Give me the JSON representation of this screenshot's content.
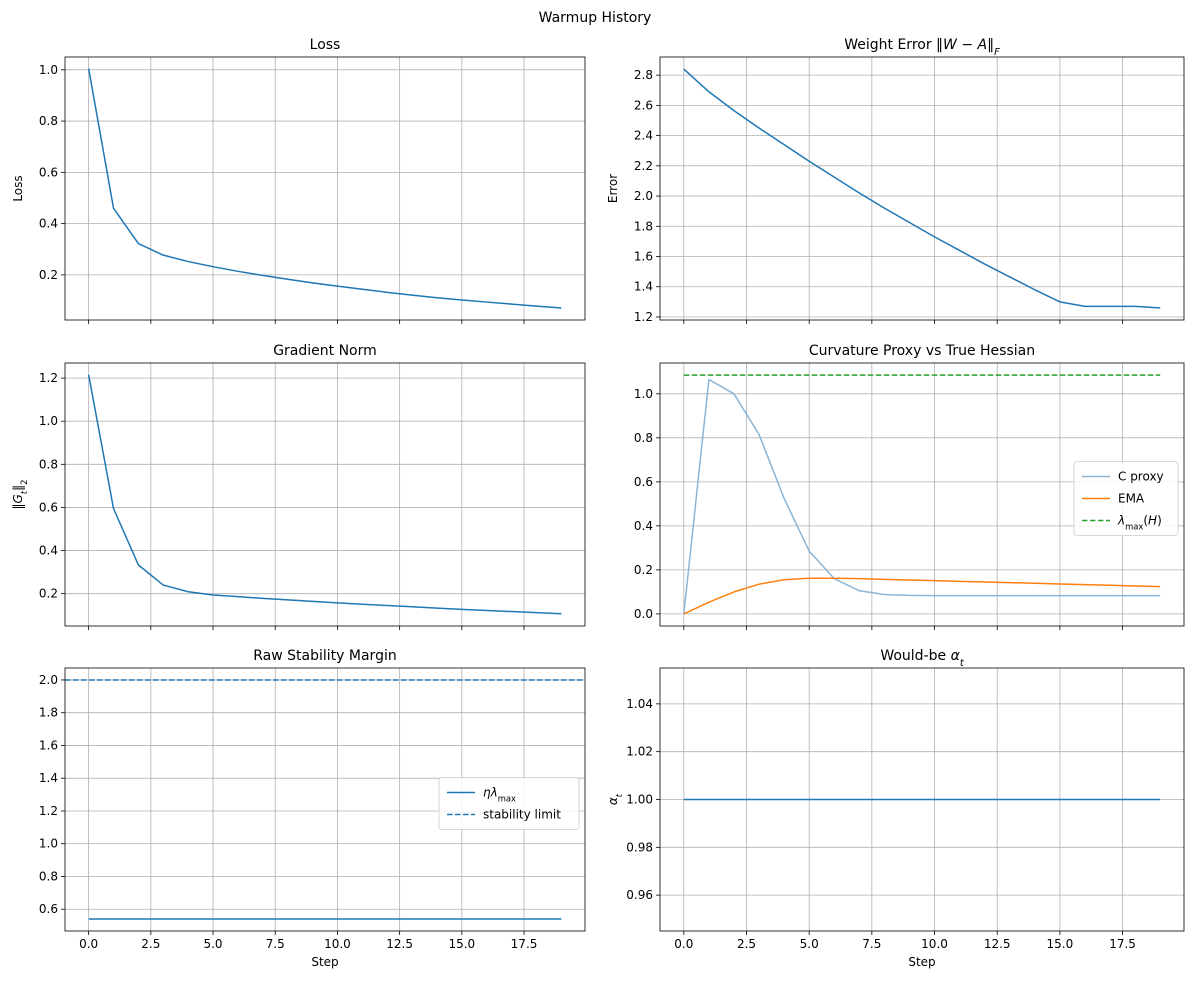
{
  "figure": {
    "suptitle": "Warmup History"
  },
  "chart_data": [
    {
      "id": "loss",
      "type": "line",
      "title": "Loss",
      "xlabel": "",
      "ylabel": "Loss",
      "xlim": [
        -0.95,
        19.95
      ],
      "ylim": [
        0.024,
        1.05
      ],
      "xticks": [
        0,
        2.5,
        5,
        7.5,
        10,
        12.5,
        15,
        17.5
      ],
      "xtick_labels": [
        "",
        "",
        "",
        "",
        "",
        "",
        "",
        ""
      ],
      "yticks": [
        0.2,
        0.4,
        0.6,
        0.8,
        1.0
      ],
      "ytick_labels": [
        "0.2",
        "0.4",
        "0.6",
        "0.8",
        "1.0"
      ],
      "grid": true,
      "legend": null,
      "series": [
        {
          "name": "",
          "color": "#1f77b4",
          "dash": "solid",
          "x": [
            0,
            1,
            2,
            3,
            4,
            5,
            6,
            7,
            8,
            9,
            10,
            11,
            12,
            13,
            14,
            15,
            16,
            17,
            18,
            19
          ],
          "y": [
            1.005,
            0.46,
            0.322,
            0.277,
            0.252,
            0.232,
            0.214,
            0.198,
            0.183,
            0.169,
            0.156,
            0.144,
            0.132,
            0.121,
            0.111,
            0.102,
            0.094,
            0.086,
            0.078,
            0.071
          ]
        }
      ]
    },
    {
      "id": "weight-error",
      "type": "line",
      "title": "Weight Error ‖W − A‖F",
      "xlabel": "",
      "ylabel": "Error",
      "xlim": [
        -0.95,
        19.95
      ],
      "ylim": [
        1.18,
        2.92
      ],
      "xticks": [
        0,
        2.5,
        5,
        7.5,
        10,
        12.5,
        15,
        17.5
      ],
      "xtick_labels": [
        "",
        "",
        "",
        "",
        "",
        "",
        "",
        ""
      ],
      "yticks": [
        1.2,
        1.4,
        1.6,
        1.8,
        2.0,
        2.2,
        2.4,
        2.6,
        2.8
      ],
      "ytick_labels": [
        "1.2",
        "1.4",
        "1.6",
        "1.8",
        "2.0",
        "2.2",
        "2.4",
        "2.6",
        "2.8"
      ],
      "grid": true,
      "legend": null,
      "series": [
        {
          "name": "",
          "color": "#1f77b4",
          "dash": "solid",
          "x": [
            0,
            1,
            2,
            3,
            4,
            5,
            6,
            7,
            8,
            9,
            10,
            11,
            12,
            13,
            14,
            15,
            16,
            17,
            18,
            19
          ],
          "y": [
            2.84,
            2.69,
            2.565,
            2.45,
            2.34,
            2.23,
            2.125,
            2.02,
            1.92,
            1.825,
            1.73,
            1.64,
            1.55,
            1.465,
            1.38,
            1.3,
            1.27,
            1.27,
            1.27,
            1.26
          ]
        }
      ]
    },
    {
      "id": "gradient-norm",
      "type": "line",
      "title": "Gradient Norm",
      "xlabel": "",
      "ylabel": "‖Gt‖2",
      "xlim": [
        -0.95,
        19.95
      ],
      "ylim": [
        0.05,
        1.27
      ],
      "xticks": [
        0,
        2.5,
        5,
        7.5,
        10,
        12.5,
        15,
        17.5
      ],
      "xtick_labels": [
        "",
        "",
        "",
        "",
        "",
        "",
        "",
        ""
      ],
      "yticks": [
        0.2,
        0.4,
        0.6,
        0.8,
        1.0,
        1.2
      ],
      "ytick_labels": [
        "0.2",
        "0.4",
        "0.6",
        "0.8",
        "1.0",
        "1.2"
      ],
      "grid": true,
      "legend": null,
      "series": [
        {
          "name": "",
          "color": "#1f77b4",
          "dash": "solid",
          "x": [
            0,
            1,
            2,
            3,
            4,
            5,
            6,
            7,
            8,
            9,
            10,
            11,
            12,
            13,
            14,
            15,
            16,
            17,
            18,
            19
          ],
          "y": [
            1.215,
            0.595,
            0.333,
            0.24,
            0.209,
            0.194,
            0.186,
            0.178,
            0.171,
            0.164,
            0.157,
            0.151,
            0.145,
            0.139,
            0.133,
            0.127,
            0.122,
            0.117,
            0.112,
            0.107
          ]
        }
      ]
    },
    {
      "id": "curvature-proxy",
      "type": "line",
      "title": "Curvature Proxy vs True Hessian",
      "xlabel": "",
      "ylabel": "",
      "xlim": [
        -0.95,
        19.95
      ],
      "ylim": [
        -0.055,
        1.14
      ],
      "xticks": [
        0,
        2.5,
        5,
        7.5,
        10,
        12.5,
        15,
        17.5
      ],
      "xtick_labels": [
        "",
        "",
        "",
        "",
        "",
        "",
        "",
        ""
      ],
      "yticks": [
        0.0,
        0.2,
        0.4,
        0.6,
        0.8,
        1.0
      ],
      "ytick_labels": [
        "0.0",
        "0.2",
        "0.4",
        "0.6",
        "0.8",
        "1.0"
      ],
      "grid": true,
      "legend": "center-right",
      "series": [
        {
          "name": "C proxy",
          "color": "#8ab5d6",
          "dash": "solid",
          "x": [
            0,
            1,
            2,
            3,
            4,
            5,
            6,
            7,
            8,
            9,
            10,
            11,
            12,
            13,
            14,
            15,
            16,
            17,
            18,
            19
          ],
          "y": [
            0.0,
            1.065,
            1.0,
            0.815,
            0.525,
            0.285,
            0.16,
            0.105,
            0.088,
            0.084,
            0.083,
            0.083,
            0.083,
            0.083,
            0.083,
            0.083,
            0.083,
            0.083,
            0.083,
            0.083
          ]
        },
        {
          "name": "EMA",
          "color": "#ff7f0e",
          "dash": "solid",
          "x": [
            0,
            1,
            2,
            3,
            4,
            5,
            6,
            7,
            8,
            9,
            10,
            11,
            12,
            13,
            14,
            15,
            16,
            17,
            18,
            19
          ],
          "y": [
            0.0,
            0.053,
            0.1,
            0.135,
            0.155,
            0.162,
            0.162,
            0.16,
            0.157,
            0.154,
            0.151,
            0.148,
            0.145,
            0.142,
            0.139,
            0.136,
            0.133,
            0.13,
            0.127,
            0.124
          ]
        },
        {
          "name": "λmax(H)",
          "color": "#2ca02c",
          "dash": "dashed",
          "x": [
            0,
            19
          ],
          "y": [
            1.085,
            1.085
          ]
        }
      ]
    },
    {
      "id": "stability-margin",
      "type": "line",
      "title": "Raw Stability Margin",
      "xlabel": "Step",
      "ylabel": "",
      "xlim": [
        -0.95,
        19.95
      ],
      "ylim": [
        0.467,
        2.073
      ],
      "xticks": [
        0,
        2.5,
        5,
        7.5,
        10,
        12.5,
        15,
        17.5
      ],
      "xtick_labels": [
        "0.0",
        "2.5",
        "5.0",
        "7.5",
        "10.0",
        "12.5",
        "15.0",
        "17.5"
      ],
      "yticks": [
        0.6,
        0.8,
        1.0,
        1.2,
        1.4,
        1.6,
        1.8,
        2.0
      ],
      "ytick_labels": [
        "0.6",
        "0.8",
        "1.0",
        "1.2",
        "1.4",
        "1.6",
        "1.8",
        "2.0"
      ],
      "grid": true,
      "legend": "center-right",
      "series": [
        {
          "name": "ηλmax",
          "color": "#1f77b4",
          "dash": "solid",
          "x": [
            0,
            19
          ],
          "y": [
            0.54,
            0.54
          ]
        },
        {
          "name": "stability limit",
          "color": "#1f77b4",
          "dash": "dashed",
          "x": [
            -0.95,
            19.95
          ],
          "y": [
            2.0,
            2.0
          ]
        }
      ]
    },
    {
      "id": "alpha",
      "type": "line",
      "title": "Would-be αt",
      "xlabel": "Step",
      "ylabel": "αt",
      "xlim": [
        -0.95,
        19.95
      ],
      "ylim": [
        0.945,
        1.055
      ],
      "xticks": [
        0,
        2.5,
        5,
        7.5,
        10,
        12.5,
        15,
        17.5
      ],
      "xtick_labels": [
        "0.0",
        "2.5",
        "5.0",
        "7.5",
        "10.0",
        "12.5",
        "15.0",
        "17.5"
      ],
      "yticks": [
        0.96,
        0.98,
        1.0,
        1.02,
        1.04
      ],
      "ytick_labels": [
        "0.96",
        "0.98",
        "1.00",
        "1.02",
        "1.04"
      ],
      "grid": true,
      "legend": null,
      "series": [
        {
          "name": "",
          "color": "#1f77b4",
          "dash": "solid",
          "x": [
            0,
            19
          ],
          "y": [
            1.0,
            1.0
          ]
        }
      ]
    }
  ]
}
